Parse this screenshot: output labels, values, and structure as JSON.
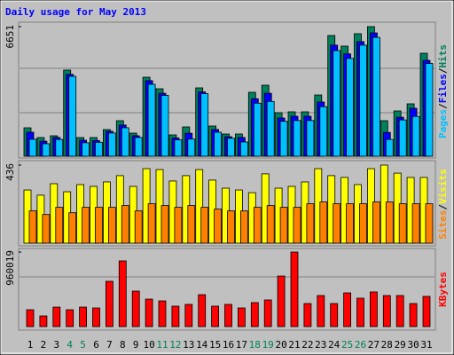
{
  "chart_data": [
    {
      "type": "bar",
      "title": "Daily usage for May 2013",
      "legend_separator": "/",
      "ylim": [
        0,
        6651
      ],
      "yticks": [
        6651
      ],
      "series": [
        {
          "name": "Hits",
          "color": "#00805c",
          "values": [
            1458,
            957,
            1048,
            4419,
            957,
            957,
            1367,
            1822,
            1184,
            4054,
            3462,
            1093,
            1503,
            3508,
            1549,
            1139,
            1139,
            3280,
            3644,
            2232,
            2278,
            2278,
            3143,
            6195,
            5650,
            6287,
            6651,
            1822,
            2323,
            2688,
            5284
          ]
        },
        {
          "name": "Files",
          "color": "#0000ff",
          "values": [
            1230,
            770,
            960,
            4200,
            820,
            800,
            1280,
            1600,
            1050,
            3880,
            3230,
            940,
            1180,
            3300,
            1370,
            1000,
            960,
            2950,
            3230,
            1960,
            2050,
            2050,
            2780,
            5700,
            5250,
            5880,
            6330,
            1220,
            2000,
            2460,
            4920
          ]
        },
        {
          "name": "Pages",
          "color": "#00c0ff",
          "values": [
            870,
            640,
            860,
            4100,
            690,
            710,
            1190,
            1460,
            960,
            3690,
            3120,
            840,
            880,
            3210,
            1230,
            920,
            730,
            2720,
            2810,
            1790,
            1830,
            1830,
            2540,
            5420,
            5020,
            5700,
            6100,
            860,
            1860,
            2040,
            4760
          ]
        }
      ]
    },
    {
      "type": "bar",
      "legend_separator": "/",
      "ylim": [
        0,
        436
      ],
      "yticks": [
        436
      ],
      "series": [
        {
          "name": "Visits",
          "color": "#ffff00",
          "values": [
            297,
            268,
            332,
            287,
            327,
            317,
            342,
            377,
            317,
            416,
            411,
            347,
            377,
            411,
            352,
            307,
            297,
            282,
            387,
            307,
            317,
            342,
            416,
            377,
            367,
            327,
            416,
            436,
            391,
            367,
            367
          ]
        },
        {
          "name": "Sites",
          "color": "#ff8000",
          "values": [
            180,
            160,
            200,
            170,
            200,
            200,
            200,
            210,
            180,
            220,
            210,
            200,
            210,
            200,
            190,
            180,
            180,
            200,
            210,
            200,
            200,
            220,
            230,
            220,
            220,
            220,
            230,
            230,
            220,
            220,
            220
          ]
        }
      ]
    },
    {
      "type": "bar",
      "ylim": [
        0,
        960019
      ],
      "yticks": [
        960019
      ],
      "categories": [
        "1",
        "2",
        "3",
        "4",
        "5",
        "6",
        "7",
        "8",
        "9",
        "10",
        "11",
        "12",
        "13",
        "14",
        "15",
        "16",
        "17",
        "18",
        "19",
        "20",
        "21",
        "22",
        "23",
        "24",
        "25",
        "26",
        "27",
        "28",
        "29",
        "30",
        "31"
      ],
      "category_colors": [
        "#000000",
        "#000000",
        "#000000",
        "#00805c",
        "#00805c",
        "#000000",
        "#000000",
        "#000000",
        "#000000",
        "#000000",
        "#00805c",
        "#00805c",
        "#000000",
        "#000000",
        "#000000",
        "#000000",
        "#000000",
        "#00805c",
        "#00805c",
        "#000000",
        "#000000",
        "#000000",
        "#000000",
        "#000000",
        "#00805c",
        "#00805c",
        "#000000",
        "#000000",
        "#000000",
        "#000000",
        "#000000"
      ],
      "series": [
        {
          "name": "KBytes",
          "color": "#ff0000",
          "values": [
            217000,
            137000,
            251000,
            217000,
            251000,
            240000,
            583000,
            846000,
            457000,
            354000,
            331000,
            263000,
            286000,
            411000,
            263000,
            286000,
            240000,
            309000,
            343000,
            651000,
            960019,
            297000,
            400000,
            297000,
            434000,
            366000,
            446000,
            400000,
            400000,
            297000,
            389000
          ]
        }
      ]
    }
  ]
}
